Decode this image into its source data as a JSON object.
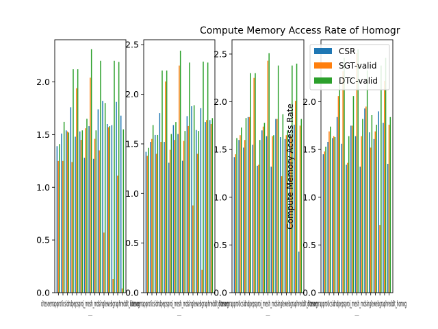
{
  "figure": {
    "title": "Compute Memory Access Rate of Homogr",
    "ylabel": "Compute Memory Access Rate",
    "xlabel": "__"
  },
  "legend": {
    "placement": "top-right",
    "entries": [
      {
        "label": "CSR",
        "color": "#1f77b4"
      },
      {
        "label": "SGT-valid",
        "color": "#ff7f0e"
      },
      {
        "label": "DTC-valid",
        "color": "#2ca02c"
      }
    ]
  },
  "chart_data": [
    {
      "type": "bar",
      "panel": "panel-1",
      "ylim": [
        0,
        2.4
      ],
      "yticks": [
        "0.0",
        "0.5",
        "1.0",
        "1.5",
        "2.0"
      ],
      "yticks_values": [
        0,
        0.5,
        1.0,
        1.5,
        2.0
      ],
      "xtick_text": "citeseerrapproticsidndpepsproj_mesh_mdsinglewebgraphreddit_homog",
      "series": [
        {
          "name": "CSR",
          "values": [
            1.39,
            1.51,
            1.54,
            1.76,
            1.48,
            1.53,
            1.28,
            1.58,
            1.27,
            1.74,
            1.82,
            1.6,
            1.59,
            1.81,
            1.68
          ]
        },
        {
          "name": "SGT-valid",
          "values": [
            1.25,
            1.25,
            1.53,
            1.24,
            1.94,
            1.45,
            1.56,
            2.04,
            1.46,
            1.35,
            0.57,
            1.57,
            0.13,
            1.11,
            0.04
          ]
        },
        {
          "name": "DTC-valid",
          "values": [
            1.41,
            1.62,
            1.52,
            2.12,
            2.12,
            1.54,
            1.65,
            2.31,
            1.54,
            2.2,
            1.8,
            1.58,
            2.2,
            2.19,
            1.55
          ]
        }
      ]
    },
    {
      "type": "bar",
      "panel": "panel-2",
      "ylim": [
        0,
        2.55
      ],
      "yticks": [
        "0.0",
        "0.5",
        "1.0",
        "1.5",
        "2.0",
        "2.5"
      ],
      "yticks_values": [
        0,
        0.5,
        1.0,
        1.5,
        2.0,
        2.5
      ],
      "xtick_text": "citeseerrapproticsidndpepsproj_mesh_mdsinglewebgraphreddit_homog",
      "series": [
        {
          "name": "CSR",
          "values": [
            1.42,
            1.52,
            1.59,
            1.81,
            1.52,
            1.31,
            1.69,
            1.6,
            1.33,
            1.78,
            1.88,
            1.64,
            1.86,
            1.72,
            1.74
          ]
        },
        {
          "name": "SGT-valid",
          "values": [
            1.38,
            1.55,
            1.4,
            1.52,
            2.13,
            1.44,
            1.54,
            2.29,
            1.53,
            1.68,
            0.88,
            1.4,
            0.23,
            1.74,
            1.7
          ]
        },
        {
          "name": "DTC-valid",
          "values": [
            1.46,
            1.69,
            1.59,
            2.24,
            2.24,
            1.6,
            1.72,
            2.44,
            1.63,
            2.32,
            1.89,
            1.63,
            2.33,
            2.32,
            1.76
          ]
        }
      ]
    },
    {
      "type": "bar",
      "panel": "panel-3",
      "ylim": [
        0,
        2.65
      ],
      "yticks": [
        "0.0",
        "0.5",
        "1.0",
        "1.5",
        "2.0",
        "2.5"
      ],
      "yticks_values": [
        0,
        0.5,
        1.0,
        1.5,
        2.0,
        2.5
      ],
      "xtick_text": "citeseerrapproticsidndpepsproj_mesh_mdsinglewebgraphreddit_homog",
      "series": [
        {
          "name": "CSR",
          "values": [
            1.42,
            1.6,
            1.52,
            1.84,
            1.55,
            1.33,
            1.7,
            1.64,
            1.32,
            1.82,
            1.63,
            1.61,
            1.65,
            1.76,
            0.43
          ]
        },
        {
          "name": "SGT-valid",
          "values": [
            1.45,
            1.65,
            1.6,
            1.84,
            2.25,
            1.34,
            1.74,
            2.43,
            1.64,
            1.82,
            1.22,
            1.65,
            1.64,
            2.01,
            1.75
          ]
        },
        {
          "name": "DTC-valid",
          "values": [
            1.62,
            1.73,
            1.83,
            2.3,
            2.3,
            1.6,
            1.78,
            2.51,
            1.65,
            2.38,
            1.87,
            1.7,
            2.38,
            2.4,
            1.82
          ]
        }
      ]
    },
    {
      "type": "bar",
      "panel": "panel-4",
      "ylim": [
        0,
        2.65
      ],
      "yticks": [
        "0.0",
        "0.5",
        "1.0",
        "1.5",
        "2.0"
      ],
      "yticks_values": [
        0,
        0.5,
        1.0,
        1.5,
        2.0
      ],
      "xtick_text": "citeseerrapproticsidndpepsproj_mesh_mdsinglewebgraphreddit_homog",
      "series": [
        {
          "name": "CSR",
          "values": [
            1.45,
            1.58,
            1.62,
            1.84,
            1.56,
            1.34,
            1.75,
            1.64,
            1.32,
            1.93,
            1.68,
            1.61,
            1.9,
            1.78,
            1.35
          ]
        },
        {
          "name": "SGT-valid",
          "values": [
            1.48,
            1.69,
            1.64,
            2.06,
            2.32,
            1.36,
            1.75,
            2.51,
            1.64,
            1.95,
            1.52,
            1.69,
            0.71,
            2.22,
            1.76
          ]
        },
        {
          "name": "DTC-valid",
          "values": [
            1.53,
            1.74,
            1.63,
            2.2,
            2.46,
            1.64,
            2.06,
            2.55,
            1.82,
            2.33,
            1.86,
            1.76,
            2.38,
            2.46,
            1.84
          ]
        }
      ]
    }
  ]
}
